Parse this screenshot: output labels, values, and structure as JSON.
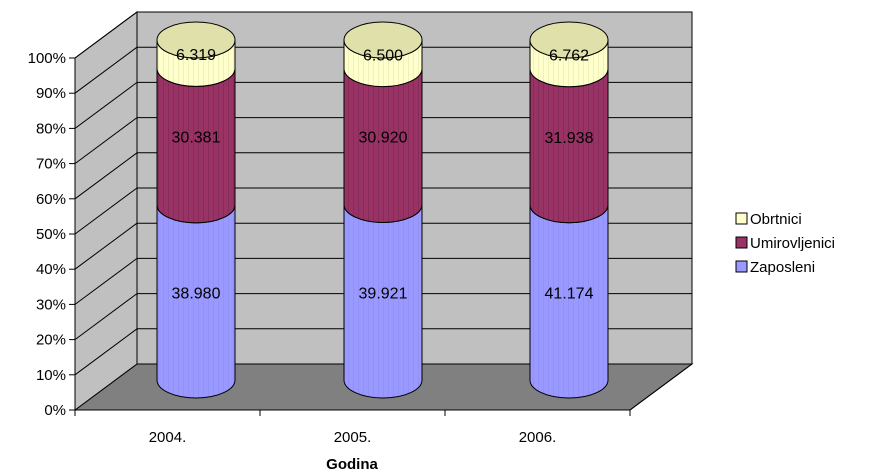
{
  "chart_data": {
    "type": "bar",
    "stacked": "percent",
    "style": "3d-cylinder",
    "categories": [
      "2004.",
      "2005.",
      "2006."
    ],
    "series": [
      {
        "name": "Zaposleni",
        "values": [
          38980,
          39921,
          41174
        ],
        "labels": [
          "38.980",
          "39.921",
          "41.174"
        ],
        "color": "#9999FF"
      },
      {
        "name": "Umirovljenici",
        "values": [
          30381,
          30920,
          31938
        ],
        "labels": [
          "30.381",
          "30.920",
          "31.938"
        ],
        "color": "#993366"
      },
      {
        "name": "Obrtnici",
        "values": [
          6319,
          6500,
          6762
        ],
        "labels": [
          "6.319",
          "6.500",
          "6.762"
        ],
        "color": "#FFFFCC"
      }
    ],
    "legend_order": [
      "Obrtnici",
      "Umirovljenici",
      "Zaposleni"
    ],
    "y_ticks": [
      "0%",
      "10%",
      "20%",
      "30%",
      "40%",
      "50%",
      "60%",
      "70%",
      "80%",
      "90%",
      "100%"
    ],
    "ylim": [
      0,
      100
    ],
    "xlabel": "Godina",
    "ylabel": "",
    "title": "",
    "grid": true,
    "legend_position": "right",
    "wall_color": "#C0C0C0",
    "floor_color": "#808080"
  }
}
